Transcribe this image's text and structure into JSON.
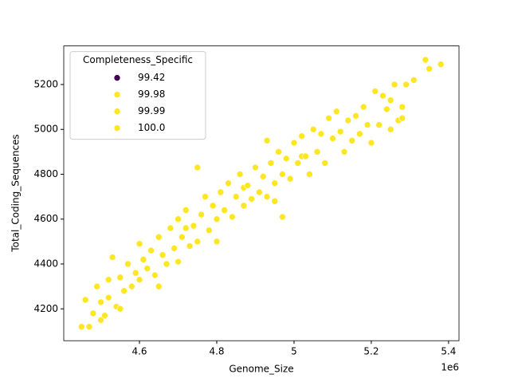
{
  "chart_data": {
    "type": "scatter",
    "x_label": "Genome_Size",
    "y_label": "Total_Coding_Sequences",
    "x_offset_label": "1e6",
    "legend_title": "Completeness_Specific",
    "legend_loc": "upper left",
    "xlim": [
      4.404,
      5.427
    ],
    "xticks": [
      4.6,
      4.8,
      5.0,
      5.2,
      5.4
    ],
    "ylim": [
      4058,
      5372
    ],
    "yticks": [
      4200,
      4400,
      4600,
      4800,
      5000,
      5200
    ],
    "series": [
      {
        "name": "99.42",
        "color": "#440154",
        "x": [],
        "values": []
      },
      {
        "name": "99.98",
        "color": "#fde725",
        "x": [
          4.87,
          5.02
        ],
        "values": [
          4740,
          4880
        ]
      },
      {
        "name": "99.99",
        "color": "#fde725",
        "x": [
          4.72
        ],
        "values": [
          4560
        ]
      },
      {
        "name": "100.0",
        "color": "#fde725",
        "x": [
          4.45,
          4.46,
          4.47,
          4.48,
          4.49,
          4.5,
          4.51,
          4.52,
          4.52,
          4.53,
          4.54,
          4.55,
          4.56,
          4.57,
          4.58,
          4.59,
          4.6,
          4.6,
          4.61,
          4.62,
          4.63,
          4.64,
          4.65,
          4.66,
          4.67,
          4.68,
          4.69,
          4.7,
          4.7,
          4.71,
          4.72,
          4.73,
          4.74,
          4.75,
          4.75,
          4.76,
          4.77,
          4.78,
          4.79,
          4.8,
          4.81,
          4.82,
          4.83,
          4.84,
          4.85,
          4.86,
          4.87,
          4.88,
          4.89,
          4.9,
          4.91,
          4.92,
          4.93,
          4.93,
          4.94,
          4.95,
          4.96,
          4.97,
          4.97,
          4.98,
          4.99,
          5.0,
          5.01,
          5.02,
          5.03,
          5.04,
          5.05,
          5.06,
          5.07,
          5.08,
          5.09,
          5.1,
          5.11,
          5.12,
          5.13,
          5.14,
          5.15,
          5.16,
          5.17,
          5.18,
          5.19,
          5.2,
          5.21,
          5.22,
          5.23,
          5.24,
          5.25,
          5.26,
          5.27,
          5.28,
          5.29,
          5.31,
          5.34,
          5.35,
          5.38,
          5.25,
          5.28,
          4.5,
          4.55,
          4.65,
          4.8,
          4.95
        ],
        "values": [
          4120,
          4240,
          4120,
          4180,
          4300,
          4230,
          4170,
          4330,
          4250,
          4430,
          4210,
          4340,
          4280,
          4400,
          4300,
          4360,
          4490,
          4330,
          4420,
          4380,
          4460,
          4350,
          4520,
          4440,
          4400,
          4560,
          4470,
          4410,
          4600,
          4520,
          4640,
          4480,
          4570,
          4830,
          4500,
          4620,
          4700,
          4550,
          4660,
          4600,
          4720,
          4640,
          4760,
          4610,
          4700,
          4800,
          4660,
          4750,
          4690,
          4830,
          4720,
          4790,
          4950,
          4700,
          4850,
          4760,
          4900,
          4800,
          4610,
          4870,
          4780,
          4940,
          4850,
          4970,
          4880,
          4800,
          5000,
          4900,
          4980,
          4850,
          5050,
          4960,
          5080,
          4990,
          4900,
          5040,
          4950,
          5060,
          4980,
          5100,
          5020,
          4940,
          5170,
          5020,
          5150,
          5090,
          5130,
          5200,
          5040,
          5100,
          5200,
          5220,
          5310,
          5270,
          5290,
          5000,
          5050,
          4150,
          4200,
          4300,
          4500,
          4680
        ]
      }
    ]
  }
}
